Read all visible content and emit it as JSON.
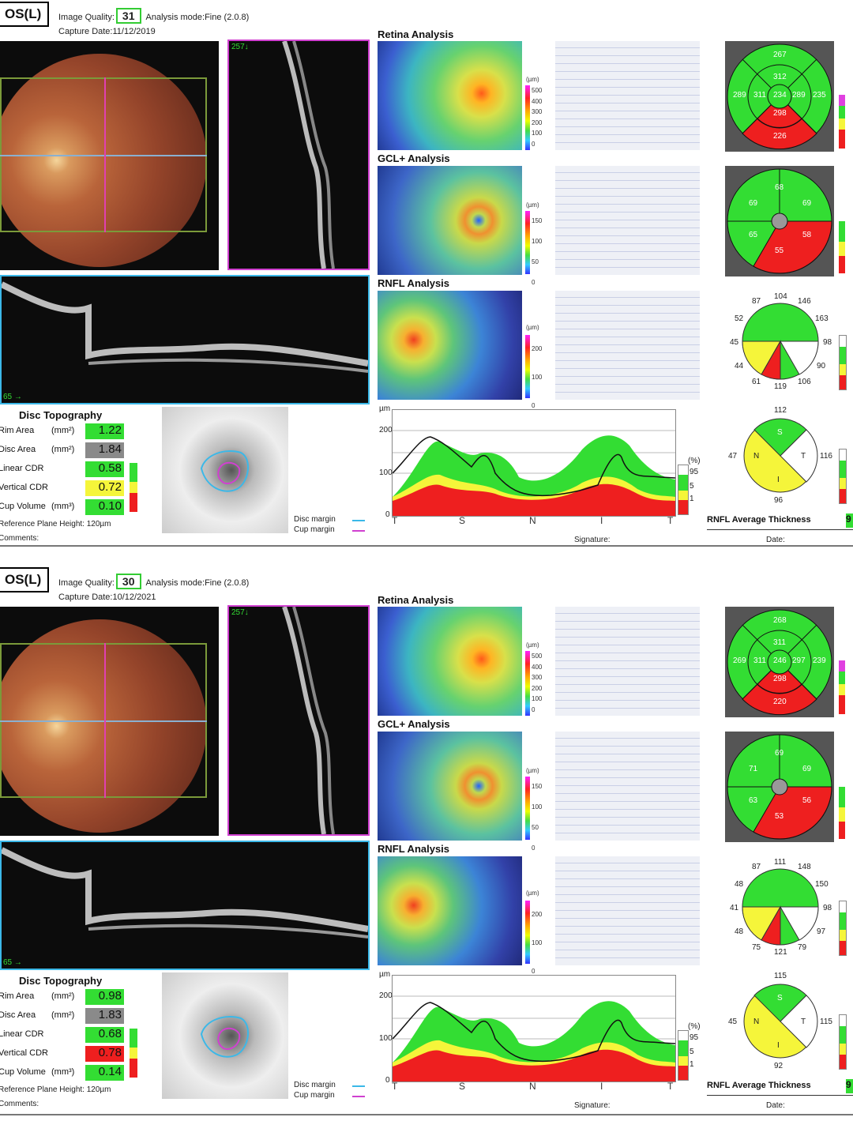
{
  "reports": [
    {
      "eye": "OS(L)",
      "image_quality_label": "Image Quality:",
      "image_quality": "31",
      "analysis_mode": "Analysis mode:Fine (2.0.8)",
      "capture_date": "Capture Date:11/12/2019",
      "bscan_label_top": "257↓",
      "bscan_label_bottom": "65 →",
      "retina_title": "Retina Analysis",
      "gcl_title": "GCL+ Analysis",
      "rnfl_title": "RNFL Analysis",
      "um": "(µm)",
      "retina_scale": [
        "500",
        "400",
        "300",
        "200",
        "100",
        "0"
      ],
      "gcl_scale": [
        "150",
        "100",
        "50",
        "0"
      ],
      "rnfl_scale": [
        "200",
        "100",
        "0"
      ],
      "retina_etdrs": {
        "s_out": "267",
        "s_in": "312",
        "t_out": "289",
        "t_in": "311",
        "c": "234",
        "n_in": "289",
        "n_out": "235",
        "i_in": "298",
        "i_out": "226"
      },
      "gcl_sectors": {
        "s": "68",
        "st": "69",
        "sn": "69",
        "it": "65",
        "i": "55",
        "in": "58"
      },
      "rnfl_clock": [
        "104",
        "146",
        "163",
        "98",
        "90",
        "106",
        "119",
        "61",
        "44",
        "45",
        "52",
        "87"
      ],
      "rnfl_quad": {
        "s": "112",
        "n": "116",
        "i": "96",
        "t": "47",
        "s_lbl": "S",
        "n_lbl": "T",
        "i_lbl": "I",
        "t_lbl": "N"
      },
      "disc_title": "Disc Topography",
      "disc_rows": [
        {
          "label": "Rim Area",
          "unit": "(mm²)",
          "value": "1.22",
          "status": "g"
        },
        {
          "label": "Disc Area",
          "unit": "(mm²)",
          "value": "1.84",
          "status": "gr"
        },
        {
          "label": "Linear CDR",
          "unit": "",
          "value": "0.58",
          "status": "g"
        },
        {
          "label": "Vertical CDR",
          "unit": "",
          "value": "0.72",
          "status": "y"
        },
        {
          "label": "Cup Volume",
          "unit": "(mm³)",
          "value": "0.10",
          "status": "g"
        }
      ],
      "ref_plane": "Reference Plane Height: 120µm",
      "comments": "Comments:",
      "disc_margin": "Disc margin",
      "cup_margin": "Cup margin",
      "tsnit_um": "µm",
      "tsnit_y": [
        "200",
        "100",
        "0"
      ],
      "tsnit_x": [
        "T",
        "S",
        "N",
        "I",
        "T"
      ],
      "legend_pct": "(%)",
      "legend_vals": [
        "95",
        "5",
        "1"
      ],
      "signature": "Signature:",
      "date": "Date:",
      "rnfl_avg_label": "RNFL Average Thickness",
      "rnfl_avg_value": "9"
    },
    {
      "eye": "OS(L)",
      "image_quality_label": "Image Quality:",
      "image_quality": "30",
      "analysis_mode": "Analysis mode:Fine (2.0.8)",
      "capture_date": "Capture Date:10/12/2021",
      "bscan_label_top": "257↓",
      "bscan_label_bottom": "65 →",
      "retina_title": "Retina Analysis",
      "gcl_title": "GCL+ Analysis",
      "rnfl_title": "RNFL Analysis",
      "um": "(µm)",
      "retina_scale": [
        "500",
        "400",
        "300",
        "200",
        "100",
        "0"
      ],
      "gcl_scale": [
        "150",
        "100",
        "50",
        "0"
      ],
      "rnfl_scale": [
        "200",
        "100",
        "0"
      ],
      "retina_etdrs": {
        "s_out": "268",
        "s_in": "311",
        "t_out": "269",
        "t_in": "311",
        "c": "246",
        "n_in": "297",
        "n_out": "239",
        "i_in": "298",
        "i_out": "220"
      },
      "gcl_sectors": {
        "s": "69",
        "st": "71",
        "sn": "69",
        "it": "63",
        "i": "53",
        "in": "56"
      },
      "rnfl_clock": [
        "111",
        "148",
        "150",
        "98",
        "97",
        "79",
        "121",
        "75",
        "48",
        "41",
        "48",
        "87"
      ],
      "rnfl_quad": {
        "s": "115",
        "n": "115",
        "i": "92",
        "t": "45",
        "s_lbl": "S",
        "n_lbl": "T",
        "i_lbl": "I",
        "t_lbl": "N"
      },
      "disc_title": "Disc Topography",
      "disc_rows": [
        {
          "label": "Rim Area",
          "unit": "(mm²)",
          "value": "0.98",
          "status": "g"
        },
        {
          "label": "Disc Area",
          "unit": "(mm²)",
          "value": "1.83",
          "status": "gr"
        },
        {
          "label": "Linear CDR",
          "unit": "",
          "value": "0.68",
          "status": "g"
        },
        {
          "label": "Vertical CDR",
          "unit": "",
          "value": "0.78",
          "status": "r"
        },
        {
          "label": "Cup Volume",
          "unit": "(mm³)",
          "value": "0.14",
          "status": "g"
        }
      ],
      "ref_plane": "Reference Plane Height: 120µm",
      "comments": "Comments:",
      "disc_margin": "Disc margin",
      "cup_margin": "Cup margin",
      "tsnit_um": "µm",
      "tsnit_y": [
        "200",
        "100",
        "0"
      ],
      "tsnit_x": [
        "T",
        "S",
        "N",
        "I",
        "T"
      ],
      "legend_pct": "(%)",
      "legend_vals": [
        "95",
        "5",
        "1"
      ],
      "signature": "Signature:",
      "date": "Date:",
      "rnfl_avg_label": "RNFL Average Thickness",
      "rnfl_avg_value": "9"
    }
  ],
  "colors": {
    "normal": "#33dd33",
    "borderline": "#f5f53a",
    "outside": "#ee1f1f",
    "supernormal": "#ffffff",
    "grey": "#8a8a8a",
    "frame_cyan": "#3bb8e8",
    "frame_magenta": "#d040d0"
  }
}
